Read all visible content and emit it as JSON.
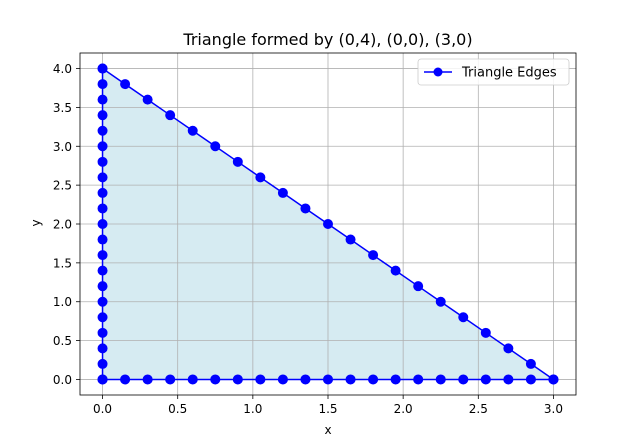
{
  "chart_data": {
    "type": "line",
    "title": "Triangle formed by (0,4), (0,0), (3,0)",
    "xlabel": "x",
    "ylabel": "y",
    "xlim": [
      -0.15,
      3.15
    ],
    "ylim": [
      -0.2,
      4.2
    ],
    "x_ticks": [
      0.0,
      0.5,
      1.0,
      1.5,
      2.0,
      2.5,
      3.0
    ],
    "y_ticks": [
      0.0,
      0.5,
      1.0,
      1.5,
      2.0,
      2.5,
      3.0,
      3.5,
      4.0
    ],
    "x_tick_labels": [
      "0.0",
      "0.5",
      "1.0",
      "1.5",
      "2.0",
      "2.5",
      "3.0"
    ],
    "y_tick_labels": [
      "0.0",
      "0.5",
      "1.0",
      "1.5",
      "2.0",
      "2.5",
      "3.0",
      "3.5",
      "4.0"
    ],
    "grid": true,
    "legend_position": "top-right",
    "fill_polygon": {
      "vertices": [
        [
          0,
          4
        ],
        [
          0,
          0
        ],
        [
          3,
          0
        ]
      ],
      "color": "#add8e6",
      "alpha": 0.5
    },
    "series": [
      {
        "name": "Triangle Edges",
        "color": "#0000ff",
        "marker": "circle",
        "segments": [
          {
            "x": [
              0,
              0.15,
              0.3,
              0.45,
              0.6,
              0.75,
              0.9,
              1.05,
              1.2,
              1.35,
              1.5,
              1.65,
              1.8,
              1.95,
              2.1,
              2.25,
              2.4,
              2.55,
              2.7,
              2.85,
              3.0
            ],
            "y": [
              4.0,
              3.8,
              3.6,
              3.4,
              3.2,
              3.0,
              2.8,
              2.6,
              2.4,
              2.2,
              2.0,
              1.8,
              1.6,
              1.4,
              1.2,
              1.0,
              0.8,
              0.6,
              0.4,
              0.2,
              0.0
            ]
          },
          {
            "x": [
              0,
              0,
              0,
              0,
              0,
              0,
              0,
              0,
              0,
              0,
              0,
              0,
              0,
              0,
              0,
              0,
              0,
              0,
              0,
              0,
              0
            ],
            "y": [
              0.0,
              0.2,
              0.4,
              0.6,
              0.8,
              1.0,
              1.2,
              1.4,
              1.6,
              1.8,
              2.0,
              2.2,
              2.4,
              2.6,
              2.8,
              3.0,
              3.2,
              3.4,
              3.6,
              3.8,
              4.0
            ]
          },
          {
            "x": [
              0,
              0.15,
              0.3,
              0.45,
              0.6,
              0.75,
              0.9,
              1.05,
              1.2,
              1.35,
              1.5,
              1.65,
              1.8,
              1.95,
              2.1,
              2.25,
              2.4,
              2.55,
              2.7,
              2.85,
              3.0
            ],
            "y": [
              0,
              0,
              0,
              0,
              0,
              0,
              0,
              0,
              0,
              0,
              0,
              0,
              0,
              0,
              0,
              0,
              0,
              0,
              0,
              0,
              0
            ]
          }
        ]
      }
    ]
  }
}
